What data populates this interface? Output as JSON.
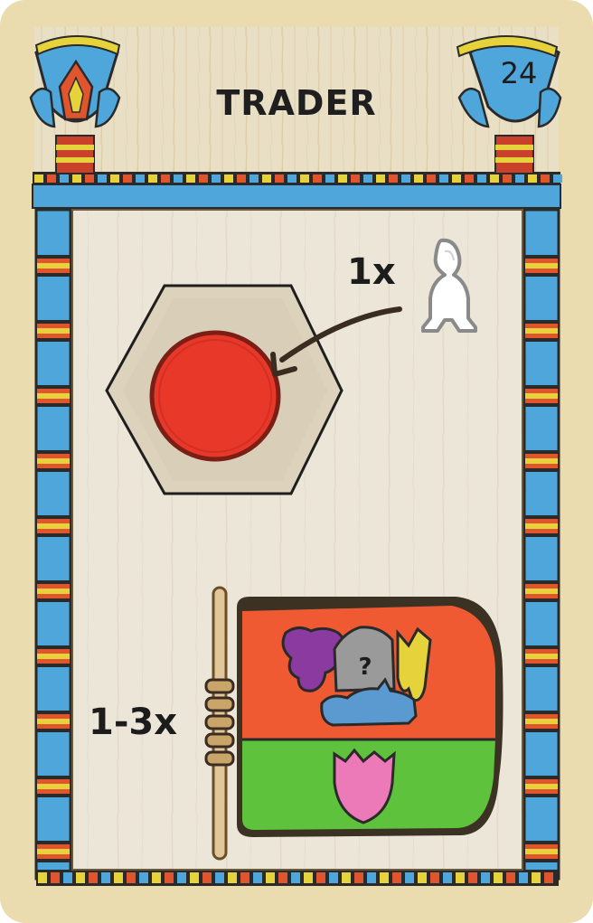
{
  "card": {
    "title": "TRADER",
    "number": "24"
  },
  "reward_top": {
    "quantity": "1x",
    "token": "white-worker-meeple-icon",
    "target": "red-disc-on-hex-tile"
  },
  "reward_bottom": {
    "quantity": "1-3x",
    "goods": [
      "grapes-icon",
      "mystery-stone-icon",
      "grain-icon",
      "fish-icon",
      "flower-icon"
    ],
    "unknown_mark": "?"
  },
  "colors": {
    "card_bg": "#eadcae",
    "frame_blue": "#4ea6da",
    "frame_red": "#e0552e",
    "frame_yellow": "#e6d23a",
    "disc_red": "#e8382a",
    "scroll_red": "#ef5a33",
    "scroll_green": "#5ec23c"
  }
}
